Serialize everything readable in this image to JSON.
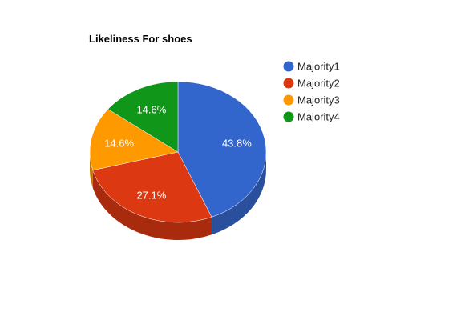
{
  "chart_data": {
    "type": "pie",
    "title": "Likeliness For shoes",
    "categories": [
      "Majority1",
      "Majority2",
      "Majority3",
      "Majority4"
    ],
    "values": [
      43.8,
      27.1,
      14.6,
      14.6
    ],
    "data_labels": [
      "43.8%",
      "27.1%",
      "14.6%",
      "14.6%"
    ],
    "colors": [
      "#3366cc",
      "#dc3912",
      "#ff9900",
      "#109618"
    ],
    "side_colors": [
      "#2a4f9c",
      "#a82b0e",
      "#c27400",
      "#0c7212"
    ],
    "legend_position": "right",
    "three_d": true
  }
}
